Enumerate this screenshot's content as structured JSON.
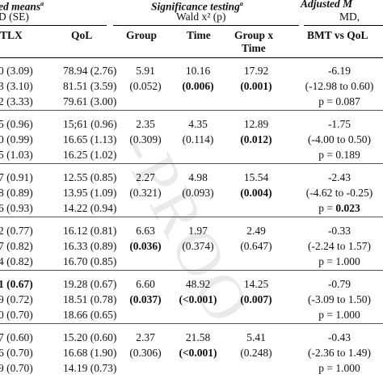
{
  "headers": {
    "adj_means_title": "ed means",
    "adj_means_sup": "a",
    "adj_means_sub": "D (SE)",
    "sig_title": "Significance testing",
    "sig_sup": "a",
    "sig_sub": "Wald x² (p)",
    "adj_md_title": "Adjusted M",
    "adj_md_sub": "MD,",
    "col_tlx": "TLX",
    "col_qol": "QoL",
    "col_group": "Group",
    "col_time": "Time",
    "col_gxt_1": "Group x",
    "col_gxt_2": "Time",
    "col_bmt": "BMT vs QoL"
  },
  "watermark": "-PROO",
  "blocks": [
    {
      "tlx": [
        "0 (3.09)",
        "3 (3.10)",
        "2 (3.33)"
      ],
      "qol": [
        "78.94 (2.76)",
        "81.51 (3.59)",
        "79.61 (3.00)"
      ],
      "group": [
        "5.91",
        "(0.052)"
      ],
      "time": [
        "10.16",
        "(0.006)"
      ],
      "gxt": [
        "17.92",
        "(0.001)"
      ],
      "bmt": [
        "-6.19",
        "(-12.98 to 0.60)",
        "p = 0.087"
      ]
    },
    {
      "tlx": [
        "5 (0.96)",
        "0 (0.99)",
        "5 (1.03)"
      ],
      "qol": [
        "15;61 (0.96)",
        "16.65 (1.13)",
        "16.25 (1.02)"
      ],
      "group": [
        "2.35",
        "(0.309)"
      ],
      "time": [
        "4.35",
        "(0.114)"
      ],
      "gxt": [
        "12.89",
        "(0.012)"
      ],
      "bmt": [
        "-1.75",
        "(-4.00 to 0.50)",
        "p = 0.189"
      ]
    },
    {
      "tlx": [
        "7 (0.91)",
        "8 (0.89)",
        "6 (0.93)"
      ],
      "qol": [
        "12.55 (0.85)",
        "13.95 (1.09)",
        "14.22 (0.94)"
      ],
      "group": [
        "2.27",
        "(0.321)"
      ],
      "time": [
        "4.98",
        "(0.093)"
      ],
      "gxt": [
        "15.54",
        "(0.004)"
      ],
      "bmt": [
        "-2.43",
        "(-4.62 to -0.25)",
        "p = 0.023"
      ]
    },
    {
      "tlx": [
        "2 (0.77)",
        "7 (0.82)",
        "4 (0.82)"
      ],
      "qol": [
        "16.12 (0.81)",
        "16.33 (0.89)",
        "16.70 (0.85)"
      ],
      "group": [
        "6.63",
        "(0.036)"
      ],
      "time": [
        "1.97",
        "(0.374)"
      ],
      "gxt": [
        "2.49",
        "(0.647)"
      ],
      "bmt": [
        "-0.33",
        "(-2.24 to 1.57)",
        "p = 1.000"
      ]
    },
    {
      "tlx": [
        "1 (0.67)",
        "9 (0.72)",
        "0 (0.70)"
      ],
      "qol": [
        "19.28 (0.67)",
        "18.51 (0.78)",
        "18.66 (0.65)"
      ],
      "group": [
        "6.60",
        "(0.037)"
      ],
      "time": [
        "48.92",
        "(<0.001)"
      ],
      "gxt": [
        "14.25",
        "(0.007)"
      ],
      "bmt": [
        "-0.79",
        "(-3.09 to 1.50)",
        "p = 1.000"
      ]
    },
    {
      "tlx": [
        "7 (0.60)",
        "6 (0.70)",
        "9 (0.70)"
      ],
      "qol": [
        "15.20 (0.60)",
        "16.68 (1.90)",
        "14.19 (0.73)"
      ],
      "group": [
        "2.37",
        "(0.306)"
      ],
      "time": [
        "21.58",
        "(<0.001)"
      ],
      "gxt": [
        "5.41",
        "(0.248)"
      ],
      "bmt": [
        "-0.43",
        "(-2.36 to 1.49)",
        "p = 1.000"
      ]
    }
  ]
}
